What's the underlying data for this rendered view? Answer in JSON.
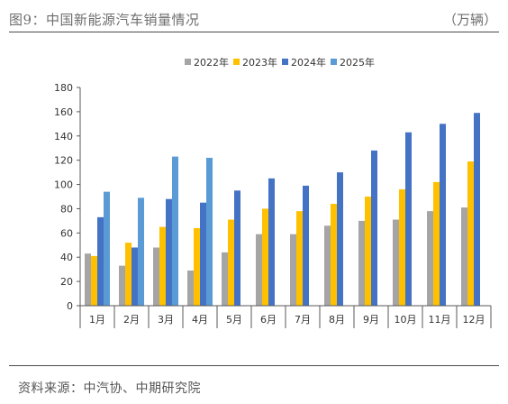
{
  "header": {
    "title": "图9：中国新能源汽车销量情况",
    "unit": "（万辆）"
  },
  "footer": {
    "source": "资料来源：中汽协、中期研究院"
  },
  "chart_data": {
    "type": "bar",
    "categories": [
      "1月",
      "2月",
      "3月",
      "4月",
      "5月",
      "6月",
      "7月",
      "8月",
      "9月",
      "10月",
      "11月",
      "12月"
    ],
    "series": [
      {
        "name": "2022年",
        "color": "#a5a5a5",
        "values": [
          43,
          33,
          48,
          29,
          44,
          59,
          59,
          66,
          70,
          71,
          78,
          81
        ]
      },
      {
        "name": "2023年",
        "color": "#ffc000",
        "values": [
          41,
          52,
          65,
          64,
          71,
          80,
          78,
          84,
          90,
          96,
          102,
          119
        ]
      },
      {
        "name": "2024年",
        "color": "#4472c4",
        "values": [
          73,
          48,
          88,
          85,
          95,
          105,
          99,
          110,
          128,
          143,
          150,
          159
        ]
      },
      {
        "name": "2025年",
        "color": "#5b9bd5",
        "values": [
          94,
          89,
          123,
          122,
          null,
          null,
          null,
          null,
          null,
          null,
          null,
          null
        ]
      }
    ],
    "ylim": [
      0,
      180
    ],
    "yticks": [
      0,
      20,
      40,
      60,
      80,
      100,
      120,
      140,
      160,
      180
    ],
    "grid": false,
    "legend": "top-center"
  }
}
